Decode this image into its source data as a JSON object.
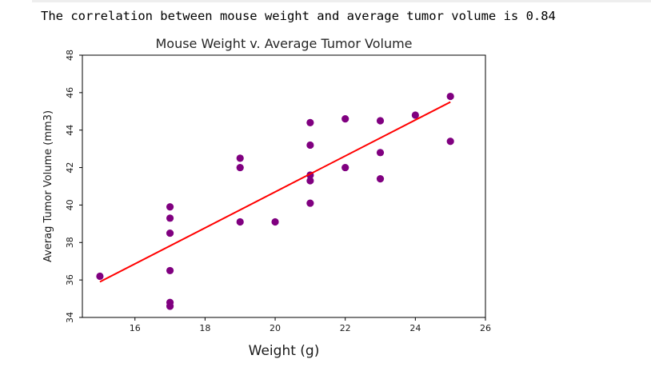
{
  "output": {
    "correlation_text": "The correlation between mouse weight and average tumor volume is 0.84"
  },
  "chart_data": {
    "type": "scatter",
    "title": "Mouse Weight v. Average Tumor Volume",
    "xlabel": "Weight (g)",
    "ylabel": "Averag Tumor Volume (mm3)",
    "xlim": [
      14.5,
      26
    ],
    "ylim": [
      34,
      48
    ],
    "xticks": [
      16,
      18,
      20,
      22,
      24,
      26
    ],
    "yticks": [
      34,
      36,
      38,
      40,
      42,
      44,
      46,
      48
    ],
    "grid": false,
    "point_color": "#800080",
    "line_color": "#ff0000",
    "points": [
      [
        15,
        36.2
      ],
      [
        17,
        34.6
      ],
      [
        17,
        34.8
      ],
      [
        17,
        36.5
      ],
      [
        17,
        38.5
      ],
      [
        17,
        39.3
      ],
      [
        17,
        39.9
      ],
      [
        19,
        39.1
      ],
      [
        19,
        42.0
      ],
      [
        19,
        42.5
      ],
      [
        20,
        39.1
      ],
      [
        21,
        40.1
      ],
      [
        21,
        41.3
      ],
      [
        21,
        41.6
      ],
      [
        21,
        43.2
      ],
      [
        21,
        44.4
      ],
      [
        22,
        42.0
      ],
      [
        22,
        44.6
      ],
      [
        23,
        41.4
      ],
      [
        23,
        42.8
      ],
      [
        23,
        44.5
      ],
      [
        24,
        44.8
      ],
      [
        25,
        43.4
      ],
      [
        25,
        45.8
      ]
    ],
    "regression_line": [
      [
        15,
        35.9
      ],
      [
        25,
        45.5
      ]
    ]
  }
}
